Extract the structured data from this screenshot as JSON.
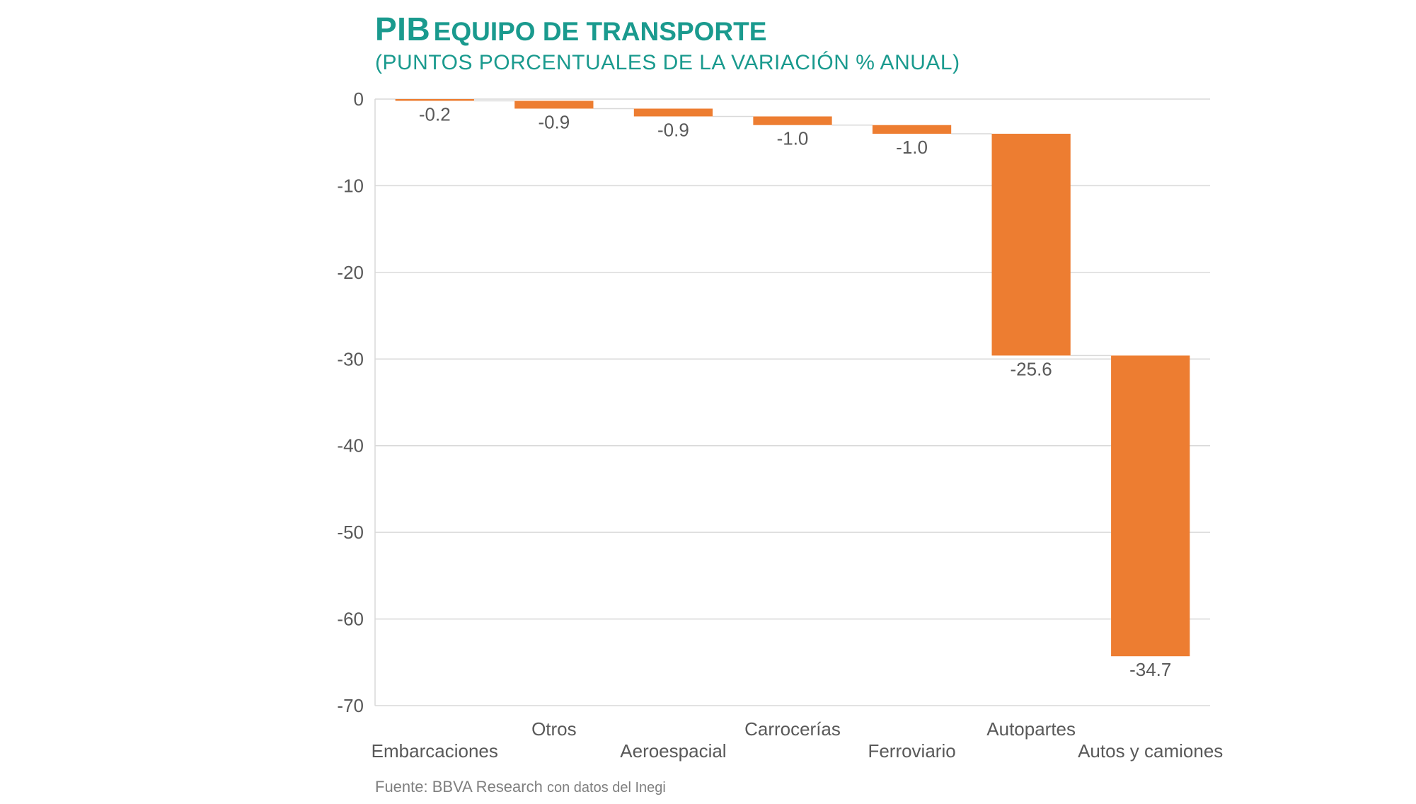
{
  "title": {
    "main": "PIB",
    "rest": "EQUIPO DE TRANSPORTE",
    "subtitle": "(PUNTOS PORCENTUALES DE LA VARIACIÓN % ANUAL)"
  },
  "source": {
    "prefix": "Fuente: BBVA Research",
    "suffix": "con datos del Inegi"
  },
  "colors": {
    "bar": "#ed7d31",
    "title": "#1a9a8e",
    "grid": "#d9d9d9",
    "axis_text": "#595959"
  },
  "chart_data": {
    "type": "bar",
    "subtype": "waterfall",
    "categories": [
      "Embarcaciones",
      "Otros",
      "Aeroespacial",
      "Carrocerías",
      "Ferroviario",
      "Autopartes",
      "Autos y camiones"
    ],
    "values": [
      -0.2,
      -0.9,
      -0.9,
      -1.0,
      -1.0,
      -25.6,
      -34.7
    ],
    "value_labels": [
      "-0.2",
      "-0.9",
      "-0.9",
      "-1.0",
      "-1.0",
      "-25.6",
      "-34.7"
    ],
    "ylim": [
      -70,
      0
    ],
    "yticks": [
      0,
      -10,
      -20,
      -30,
      -40,
      -50,
      -60,
      -70
    ],
    "ytick_labels": [
      "0",
      "-10",
      "-20",
      "-30",
      "-40",
      "-50",
      "-60",
      "-70"
    ],
    "grid": true,
    "xlabel": "",
    "ylabel": ""
  }
}
